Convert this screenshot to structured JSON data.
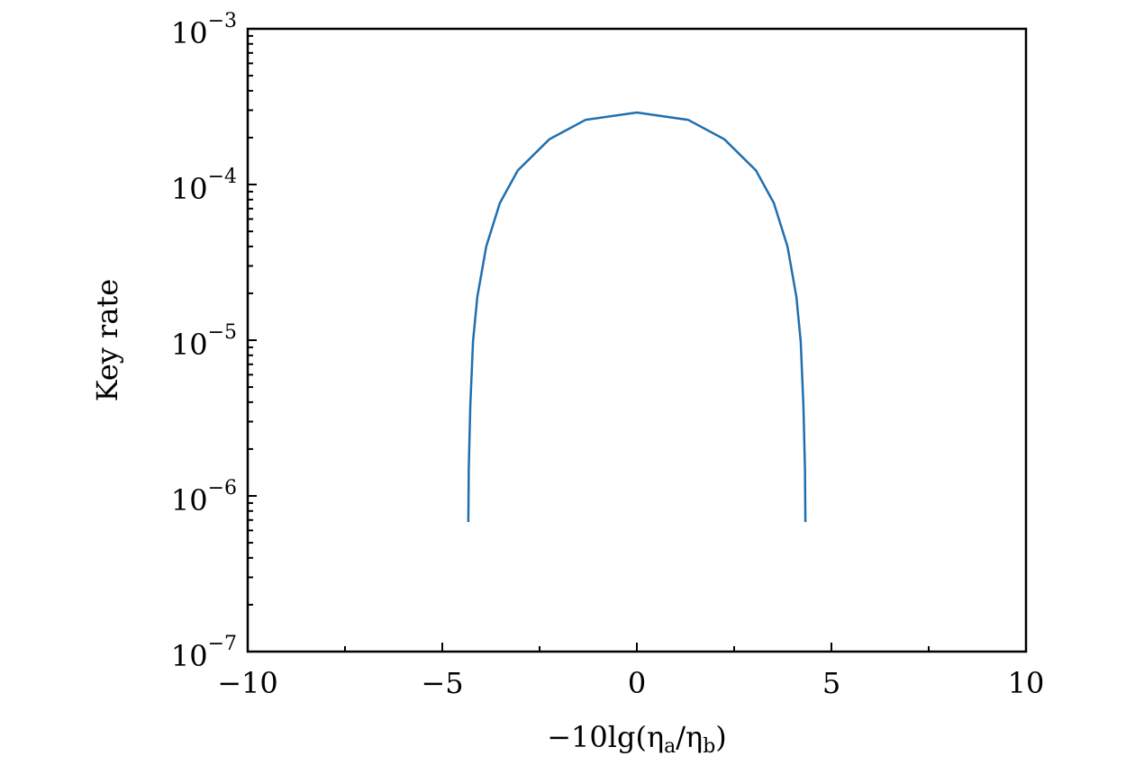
{
  "chart_data": {
    "type": "line",
    "ylabel": "Key rate",
    "xlabel": [
      {
        "text": "−10lg(η"
      },
      {
        "text": "a",
        "sub": true
      },
      {
        "text": "/η"
      },
      {
        "text": "b",
        "sub": true
      },
      {
        "text": ")"
      }
    ],
    "log_y": true,
    "xlim": [
      -10,
      10
    ],
    "ylim": [
      1e-07,
      0.001
    ],
    "xticks": [
      {
        "value": -10,
        "label": "−10"
      },
      {
        "value": -5,
        "label": "−5"
      },
      0,
      5,
      10
    ],
    "xminorticks": [
      -7.5,
      -2.5,
      2.5,
      7.5
    ],
    "yticks": [
      {
        "value": 1e-07,
        "label": "10",
        "exponent": "−7"
      },
      {
        "value": 1e-06,
        "label": "10",
        "exponent": "−6"
      },
      {
        "value": 1e-05,
        "label": "10",
        "exponent": "−5"
      },
      {
        "value": 0.0001,
        "label": "10",
        "exponent": "−4"
      },
      {
        "value": 0.001,
        "label": "10",
        "exponent": "−3"
      }
    ],
    "yminorticks": [
      2e-07,
      3e-07,
      4e-07,
      5e-07,
      6e-07,
      7e-07,
      8e-07,
      9e-07,
      2e-06,
      3e-06,
      4e-06,
      5e-06,
      6e-06,
      7e-06,
      8e-06,
      9e-06,
      2e-05,
      3e-05,
      4e-05,
      5e-05,
      6e-05,
      7e-05,
      8e-05,
      9e-05,
      0.0002,
      0.0003,
      0.0004,
      0.0005,
      0.0006,
      0.0007,
      0.0008,
      0.0009
    ],
    "series": [
      {
        "color": "#1f6fb0",
        "x": [
          -4.33,
          -4.32,
          -4.28,
          -4.21,
          -4.1,
          -3.87,
          -3.52,
          -3.06,
          -2.25,
          -1.32,
          0,
          1.32,
          2.25,
          3.06,
          3.52,
          3.87,
          4.1,
          4.21,
          4.28,
          4.32,
          4.33
        ],
        "values": [
          6.8e-07,
          1.5e-06,
          3.8e-06,
          9.8e-06,
          1.9e-05,
          4e-05,
          7.6e-05,
          0.000123,
          0.000195,
          0.00026,
          0.00029,
          0.00026,
          0.000195,
          0.000123,
          7.6e-05,
          4e-05,
          1.9e-05,
          9.8e-06,
          3.8e-06,
          1.5e-06,
          6.8e-07
        ]
      }
    ]
  }
}
